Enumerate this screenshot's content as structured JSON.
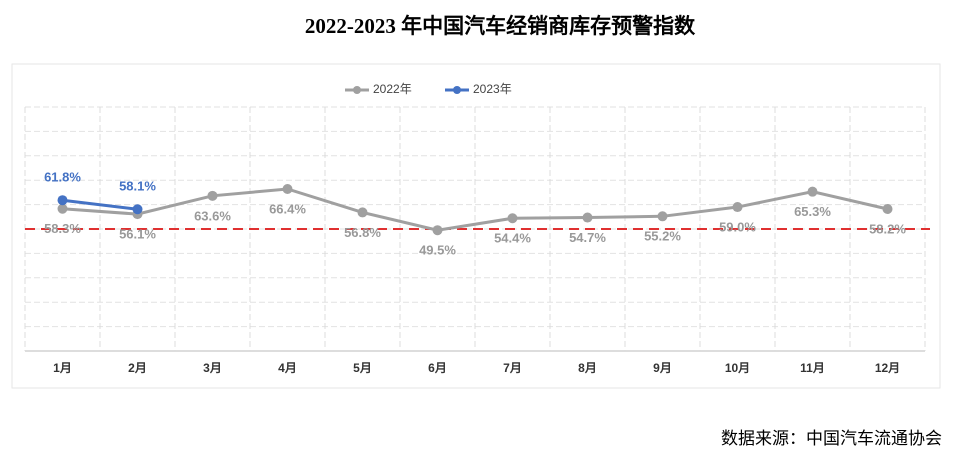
{
  "chart_data": {
    "type": "line",
    "title": "2022-2023 年中国汽车经销商库存预警指数",
    "source": "数据来源：中国汽车流通协会",
    "categories": [
      "1月",
      "2月",
      "3月",
      "4月",
      "5月",
      "6月",
      "7月",
      "8月",
      "9月",
      "10月",
      "11月",
      "12月"
    ],
    "series": [
      {
        "name": "2022年",
        "color": "#a0a0a0",
        "values": [
          58.3,
          56.1,
          63.6,
          66.4,
          56.8,
          49.5,
          54.4,
          54.7,
          55.2,
          59.0,
          65.3,
          58.2
        ],
        "value_labels": [
          "58.3%",
          "56.1%",
          "63.6%",
          "66.4%",
          "56.8%",
          "49.5%",
          "54.4%",
          "54.7%",
          "55.2%",
          "59.0%",
          "65.3%",
          "58.2%"
        ]
      },
      {
        "name": "2023年",
        "color": "#4472c4",
        "values": [
          61.8,
          58.1,
          null,
          null,
          null,
          null,
          null,
          null,
          null,
          null,
          null,
          null
        ],
        "value_labels": [
          "61.8%",
          "58.1%",
          null,
          null,
          null,
          null,
          null,
          null,
          null,
          null,
          null,
          null
        ]
      }
    ],
    "reference_line": {
      "value": 50,
      "color": "#e03030"
    },
    "ylim": [
      0,
      100
    ],
    "yticks": [
      0,
      10,
      20,
      30,
      40,
      50,
      60,
      70,
      80,
      90,
      100
    ],
    "show_ytick_labels": false,
    "grid": true,
    "legend": "top"
  }
}
